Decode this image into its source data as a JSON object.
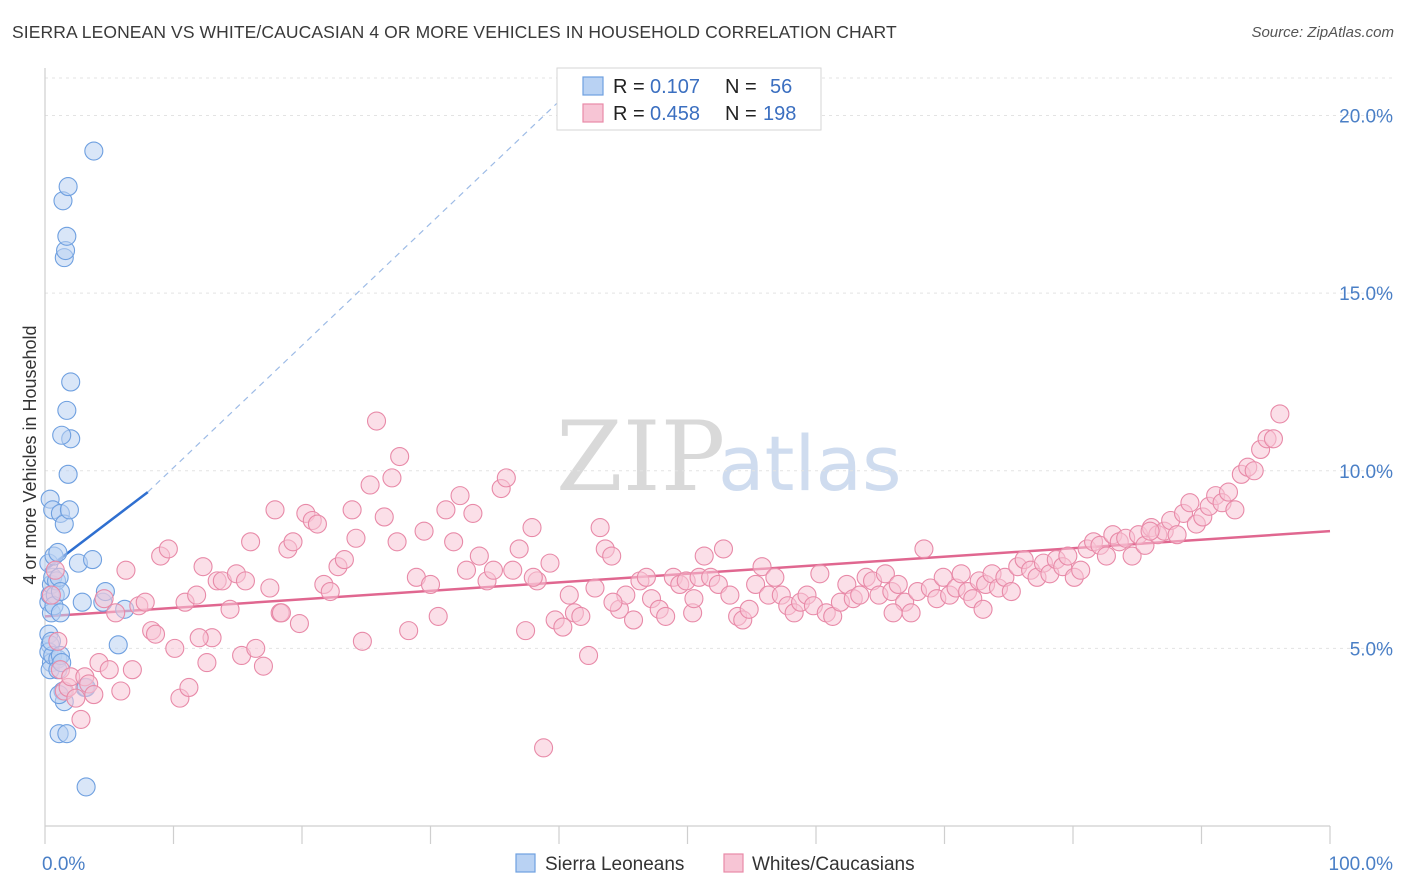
{
  "title": "SIERRA LEONEAN VS WHITE/CAUCASIAN 4 OR MORE VEHICLES IN HOUSEHOLD CORRELATION CHART",
  "source": "Source: ZipAtlas.com",
  "watermark": {
    "zip": "ZIP",
    "atlas": "atlas"
  },
  "legend": {
    "r_label": "R =",
    "n_label": "N =",
    "items": [
      {
        "r": "0.107",
        "n": "56",
        "color": "#6fa0e0",
        "fill": "#b9d2f3"
      },
      {
        "r": "0.458",
        "n": "198",
        "color": "#e88aa8",
        "fill": "#f7c5d5"
      }
    ]
  },
  "bottom_legend": [
    "Sierra Leoneans",
    "Whites/Caucasians"
  ],
  "chart_data": {
    "type": "scatter",
    "ylabel": "4 or more Vehicles in Household",
    "xlim": [
      0,
      100
    ],
    "ylim": [
      0,
      21
    ],
    "x_tick_labels": [
      "0.0%",
      "100.0%"
    ],
    "y_ticks": [
      5,
      10,
      15,
      20
    ],
    "y_tick_labels": [
      "5.0%",
      "10.0%",
      "15.0%",
      "20.0%"
    ],
    "grid": "horizontal dashed",
    "series": [
      {
        "name": "Sierra Leoneans",
        "color": "#6fa0e0",
        "trend": {
          "x": [
            0,
            8
          ],
          "y": [
            7.2,
            9.4
          ],
          "dashed_extension_to": [
            40,
            20.4
          ]
        },
        "points": [
          [
            0.3,
            5.4
          ],
          [
            0.4,
            5.1
          ],
          [
            0.3,
            4.9
          ],
          [
            0.5,
            4.6
          ],
          [
            0.4,
            4.4
          ],
          [
            0.6,
            4.8
          ],
          [
            0.5,
            5.2
          ],
          [
            0.3,
            6.3
          ],
          [
            0.4,
            6.5
          ],
          [
            0.5,
            6.8
          ],
          [
            0.6,
            7.0
          ],
          [
            0.3,
            7.4
          ],
          [
            0.7,
            7.6
          ],
          [
            0.4,
            9.2
          ],
          [
            0.6,
            8.9
          ],
          [
            0.5,
            6.0
          ],
          [
            0.8,
            6.5
          ],
          [
            0.7,
            6.2
          ],
          [
            0.9,
            6.9
          ],
          [
            1.0,
            7.7
          ],
          [
            1.1,
            7.0
          ],
          [
            1.2,
            6.6
          ],
          [
            1.2,
            6.0
          ],
          [
            1.0,
            4.7
          ],
          [
            1.0,
            4.4
          ],
          [
            1.2,
            4.8
          ],
          [
            1.3,
            4.6
          ],
          [
            1.4,
            3.8
          ],
          [
            1.5,
            3.5
          ],
          [
            1.1,
            3.7
          ],
          [
            1.1,
            2.6
          ],
          [
            1.7,
            2.6
          ],
          [
            1.2,
            8.8
          ],
          [
            1.5,
            8.5
          ],
          [
            1.9,
            8.9
          ],
          [
            1.8,
            9.9
          ],
          [
            2.0,
            10.9
          ],
          [
            1.3,
            11.0
          ],
          [
            1.7,
            11.7
          ],
          [
            2.0,
            12.5
          ],
          [
            1.5,
            16.0
          ],
          [
            1.6,
            16.2
          ],
          [
            1.7,
            16.6
          ],
          [
            1.4,
            17.6
          ],
          [
            1.8,
            18.0
          ],
          [
            3.8,
            19.0
          ],
          [
            2.6,
            7.4
          ],
          [
            2.9,
            6.3
          ],
          [
            3.1,
            3.9
          ],
          [
            3.2,
            3.9
          ],
          [
            3.7,
            7.5
          ],
          [
            4.5,
            6.3
          ],
          [
            4.7,
            6.6
          ],
          [
            5.7,
            5.1
          ],
          [
            6.2,
            6.1
          ],
          [
            3.2,
            1.1
          ]
        ]
      },
      {
        "name": "Whites/Caucasians",
        "color": "#e88aa8",
        "trend": {
          "x": [
            0,
            100
          ],
          "y": [
            5.9,
            8.3
          ]
        },
        "points": [
          [
            0.5,
            6.5
          ],
          [
            0.8,
            7.2
          ],
          [
            1.0,
            5.2
          ],
          [
            1.2,
            4.4
          ],
          [
            1.5,
            3.8
          ],
          [
            1.8,
            3.9
          ],
          [
            2.0,
            4.2
          ],
          [
            2.4,
            3.6
          ],
          [
            2.8,
            3.0
          ],
          [
            3.1,
            4.2
          ],
          [
            3.4,
            4.0
          ],
          [
            3.8,
            3.7
          ],
          [
            4.2,
            4.6
          ],
          [
            4.6,
            6.4
          ],
          [
            5.0,
            4.4
          ],
          [
            5.5,
            6.0
          ],
          [
            5.9,
            3.8
          ],
          [
            6.3,
            7.2
          ],
          [
            6.8,
            4.4
          ],
          [
            7.3,
            6.2
          ],
          [
            7.8,
            6.3
          ],
          [
            8.3,
            5.5
          ],
          [
            8.6,
            5.4
          ],
          [
            9.0,
            7.6
          ],
          [
            9.6,
            7.8
          ],
          [
            10.1,
            5.0
          ],
          [
            10.5,
            3.6
          ],
          [
            10.9,
            6.3
          ],
          [
            11.2,
            3.9
          ],
          [
            11.8,
            6.5
          ],
          [
            12.3,
            7.3
          ],
          [
            12.6,
            4.6
          ],
          [
            13.0,
            5.3
          ],
          [
            13.4,
            6.9
          ],
          [
            13.8,
            6.9
          ],
          [
            14.4,
            6.1
          ],
          [
            14.9,
            7.1
          ],
          [
            15.3,
            4.8
          ],
          [
            15.6,
            6.9
          ],
          [
            16.0,
            8.0
          ],
          [
            16.4,
            5.0
          ],
          [
            17.0,
            4.5
          ],
          [
            17.5,
            6.7
          ],
          [
            17.9,
            8.9
          ],
          [
            18.3,
            6.0
          ],
          [
            18.9,
            7.8
          ],
          [
            19.3,
            8.0
          ],
          [
            19.8,
            5.7
          ],
          [
            20.3,
            8.8
          ],
          [
            20.8,
            8.6
          ],
          [
            21.2,
            8.5
          ],
          [
            21.7,
            6.8
          ],
          [
            22.2,
            6.6
          ],
          [
            22.8,
            7.3
          ],
          [
            23.3,
            7.5
          ],
          [
            23.9,
            8.9
          ],
          [
            24.2,
            8.1
          ],
          [
            24.7,
            5.2
          ],
          [
            25.3,
            9.6
          ],
          [
            25.8,
            11.4
          ],
          [
            26.4,
            8.7
          ],
          [
            27.0,
            9.8
          ],
          [
            27.6,
            10.4
          ],
          [
            28.3,
            5.5
          ],
          [
            28.9,
            7.0
          ],
          [
            29.5,
            8.3
          ],
          [
            30.0,
            6.8
          ],
          [
            30.6,
            5.9
          ],
          [
            31.2,
            8.9
          ],
          [
            31.8,
            8.0
          ],
          [
            32.3,
            9.3
          ],
          [
            32.8,
            7.2
          ],
          [
            33.3,
            8.8
          ],
          [
            33.8,
            7.6
          ],
          [
            34.4,
            6.9
          ],
          [
            34.9,
            7.2
          ],
          [
            35.5,
            9.5
          ],
          [
            35.9,
            9.8
          ],
          [
            36.4,
            7.2
          ],
          [
            36.9,
            7.8
          ],
          [
            37.4,
            5.5
          ],
          [
            37.9,
            8.4
          ],
          [
            38.3,
            6.9
          ],
          [
            38.8,
            2.2
          ],
          [
            39.3,
            7.4
          ],
          [
            39.7,
            5.8
          ],
          [
            40.3,
            5.6
          ],
          [
            40.8,
            6.5
          ],
          [
            41.2,
            6.0
          ],
          [
            41.7,
            5.9
          ],
          [
            42.3,
            4.8
          ],
          [
            42.8,
            6.7
          ],
          [
            43.2,
            8.4
          ],
          [
            43.6,
            7.8
          ],
          [
            44.1,
            7.6
          ],
          [
            44.7,
            6.1
          ],
          [
            45.2,
            6.5
          ],
          [
            45.8,
            5.8
          ],
          [
            46.3,
            6.9
          ],
          [
            46.8,
            7.0
          ],
          [
            47.2,
            6.4
          ],
          [
            47.8,
            6.1
          ],
          [
            48.3,
            5.9
          ],
          [
            48.9,
            7.0
          ],
          [
            49.4,
            6.8
          ],
          [
            49.9,
            6.9
          ],
          [
            50.4,
            6.0
          ],
          [
            50.9,
            7.0
          ],
          [
            51.3,
            7.6
          ],
          [
            51.8,
            7.0
          ],
          [
            52.4,
            6.8
          ],
          [
            52.8,
            7.8
          ],
          [
            53.3,
            6.5
          ],
          [
            53.9,
            5.9
          ],
          [
            54.3,
            5.8
          ],
          [
            54.8,
            6.1
          ],
          [
            55.3,
            6.8
          ],
          [
            55.8,
            7.3
          ],
          [
            56.3,
            6.5
          ],
          [
            56.8,
            7.0
          ],
          [
            57.3,
            6.5
          ],
          [
            57.8,
            6.2
          ],
          [
            58.3,
            6.0
          ],
          [
            58.8,
            6.3
          ],
          [
            59.3,
            6.5
          ],
          [
            59.8,
            6.2
          ],
          [
            60.3,
            7.1
          ],
          [
            60.8,
            6.0
          ],
          [
            61.3,
            5.9
          ],
          [
            61.9,
            6.3
          ],
          [
            62.4,
            6.8
          ],
          [
            62.9,
            6.4
          ],
          [
            63.4,
            6.5
          ],
          [
            63.9,
            7.0
          ],
          [
            64.4,
            6.9
          ],
          [
            64.9,
            6.5
          ],
          [
            65.4,
            7.1
          ],
          [
            65.9,
            6.6
          ],
          [
            66.4,
            6.8
          ],
          [
            66.9,
            6.3
          ],
          [
            67.4,
            6.0
          ],
          [
            67.9,
            6.6
          ],
          [
            68.4,
            7.8
          ],
          [
            68.9,
            6.7
          ],
          [
            69.4,
            6.4
          ],
          [
            69.9,
            7.0
          ],
          [
            70.4,
            6.5
          ],
          [
            70.9,
            6.7
          ],
          [
            71.3,
            7.1
          ],
          [
            71.8,
            6.6
          ],
          [
            72.2,
            6.4
          ],
          [
            72.7,
            6.9
          ],
          [
            73.2,
            6.8
          ],
          [
            73.7,
            7.1
          ],
          [
            74.2,
            6.7
          ],
          [
            74.7,
            7.0
          ],
          [
            75.2,
            6.6
          ],
          [
            75.7,
            7.3
          ],
          [
            76.2,
            7.5
          ],
          [
            76.7,
            7.2
          ],
          [
            77.2,
            7.0
          ],
          [
            77.7,
            7.4
          ],
          [
            78.2,
            7.1
          ],
          [
            78.7,
            7.5
          ],
          [
            79.2,
            7.3
          ],
          [
            79.6,
            7.6
          ],
          [
            80.1,
            7.0
          ],
          [
            80.6,
            7.2
          ],
          [
            81.1,
            7.8
          ],
          [
            81.6,
            8.0
          ],
          [
            82.1,
            7.9
          ],
          [
            82.6,
            7.6
          ],
          [
            83.1,
            8.2
          ],
          [
            83.6,
            8.0
          ],
          [
            84.1,
            8.1
          ],
          [
            84.6,
            7.6
          ],
          [
            85.1,
            8.2
          ],
          [
            85.6,
            7.9
          ],
          [
            86.1,
            8.4
          ],
          [
            86.6,
            8.2
          ],
          [
            87.1,
            8.3
          ],
          [
            87.6,
            8.6
          ],
          [
            88.1,
            8.2
          ],
          [
            88.6,
            8.8
          ],
          [
            89.1,
            9.1
          ],
          [
            89.6,
            8.5
          ],
          [
            90.1,
            8.7
          ],
          [
            90.6,
            9.0
          ],
          [
            91.1,
            9.3
          ],
          [
            91.6,
            9.1
          ],
          [
            92.1,
            9.4
          ],
          [
            92.6,
            8.9
          ],
          [
            93.1,
            9.9
          ],
          [
            93.6,
            10.1
          ],
          [
            94.1,
            10.0
          ],
          [
            94.6,
            10.6
          ],
          [
            95.1,
            10.9
          ],
          [
            95.6,
            10.9
          ],
          [
            96.1,
            11.6
          ],
          [
            50.5,
            6.4
          ],
          [
            18.4,
            6.0
          ],
          [
            27.4,
            8.0
          ],
          [
            44.2,
            6.3
          ],
          [
            38.0,
            7.0
          ],
          [
            66.0,
            6.0
          ],
          [
            73.0,
            6.1
          ],
          [
            86.0,
            8.3
          ],
          [
            12.0,
            5.3
          ]
        ]
      }
    ]
  }
}
